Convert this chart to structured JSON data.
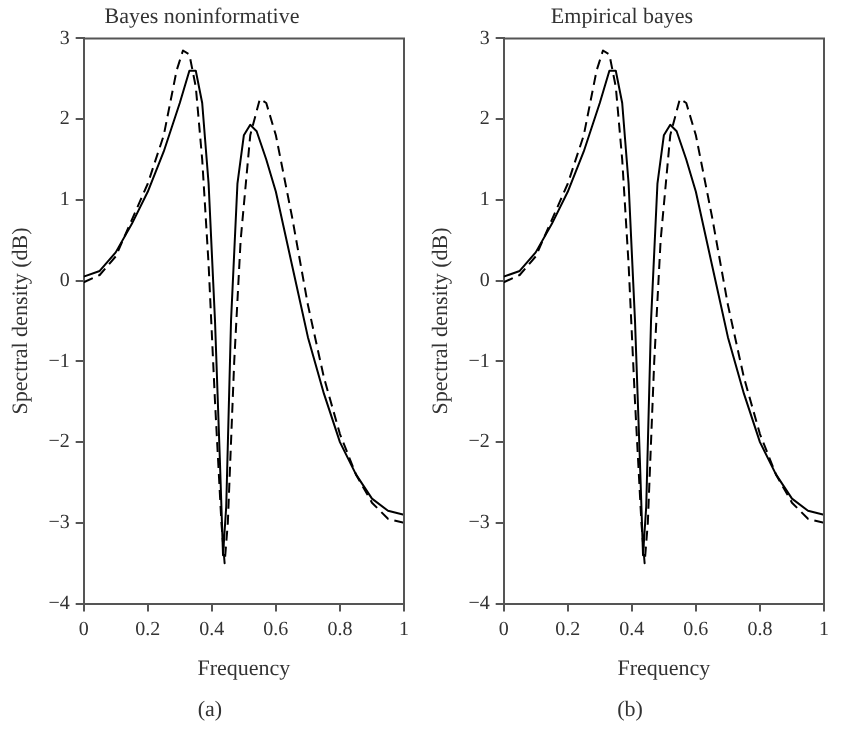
{
  "chart_data": [
    {
      "type": "line",
      "title": "Bayes noninformative",
      "xlabel": "Frequency",
      "ylabel": "Spectral density (dB)",
      "annotations": [
        "(a)"
      ],
      "xlim": [
        0,
        1
      ],
      "ylim": [
        -4,
        3
      ],
      "xticks": [
        0,
        0.2,
        0.4,
        0.6,
        0.8,
        1
      ],
      "yticks": [
        -4,
        -3,
        -2,
        -1,
        0,
        1,
        2,
        3
      ],
      "grid": false,
      "legend": false,
      "marker": "none",
      "series": [
        {
          "color": "#000000",
          "line_style": "solid",
          "x": [
            0,
            0.05,
            0.1,
            0.15,
            0.2,
            0.25,
            0.3,
            0.33,
            0.35,
            0.37,
            0.39,
            0.41,
            0.425,
            0.435,
            0.445,
            0.46,
            0.48,
            0.5,
            0.52,
            0.54,
            0.57,
            0.6,
            0.65,
            0.7,
            0.75,
            0.8,
            0.85,
            0.9,
            0.95,
            1
          ],
          "values": [
            0.05,
            0.12,
            0.35,
            0.7,
            1.1,
            1.6,
            2.2,
            2.6,
            2.6,
            2.2,
            1.2,
            -0.5,
            -2.2,
            -3.4,
            -2.8,
            -0.5,
            1.2,
            1.8,
            1.93,
            1.85,
            1.5,
            1.1,
            0.2,
            -0.7,
            -1.4,
            -2.0,
            -2.4,
            -2.7,
            -2.85,
            -2.9
          ]
        },
        {
          "color": "#000000",
          "line_style": "dashed",
          "x": [
            0,
            0.05,
            0.1,
            0.15,
            0.2,
            0.25,
            0.29,
            0.31,
            0.33,
            0.35,
            0.37,
            0.39,
            0.41,
            0.43,
            0.44,
            0.45,
            0.47,
            0.49,
            0.52,
            0.55,
            0.57,
            0.6,
            0.65,
            0.7,
            0.75,
            0.8,
            0.85,
            0.9,
            0.95,
            1
          ],
          "values": [
            -0.02,
            0.07,
            0.3,
            0.75,
            1.2,
            1.8,
            2.6,
            2.85,
            2.8,
            2.4,
            1.5,
            0.2,
            -1.5,
            -3.0,
            -3.5,
            -3.0,
            -1.0,
            0.5,
            1.8,
            2.25,
            2.2,
            1.8,
            0.8,
            -0.3,
            -1.2,
            -1.9,
            -2.4,
            -2.75,
            -2.95,
            -3.0
          ]
        }
      ]
    },
    {
      "type": "line",
      "title": "Empirical bayes",
      "xlabel": "Frequency",
      "ylabel": "Spectral density (dB)",
      "annotations": [
        "(b)"
      ],
      "xlim": [
        0,
        1
      ],
      "ylim": [
        -4,
        3
      ],
      "xticks": [
        0,
        0.2,
        0.4,
        0.6,
        0.8,
        1
      ],
      "yticks": [
        -4,
        -3,
        -2,
        -1,
        0,
        1,
        2,
        3
      ],
      "grid": false,
      "legend": false,
      "marker": "none",
      "series": [
        {
          "color": "#000000",
          "line_style": "solid",
          "x": [
            0,
            0.05,
            0.1,
            0.15,
            0.2,
            0.25,
            0.3,
            0.33,
            0.35,
            0.37,
            0.39,
            0.41,
            0.425,
            0.435,
            0.445,
            0.46,
            0.48,
            0.5,
            0.52,
            0.54,
            0.57,
            0.6,
            0.65,
            0.7,
            0.75,
            0.8,
            0.85,
            0.9,
            0.95,
            1
          ],
          "values": [
            0.05,
            0.12,
            0.35,
            0.7,
            1.1,
            1.6,
            2.2,
            2.6,
            2.6,
            2.2,
            1.2,
            -0.5,
            -2.2,
            -3.4,
            -2.8,
            -0.5,
            1.2,
            1.8,
            1.93,
            1.85,
            1.5,
            1.1,
            0.2,
            -0.7,
            -1.4,
            -2.0,
            -2.4,
            -2.7,
            -2.85,
            -2.9
          ]
        },
        {
          "color": "#000000",
          "line_style": "dashed",
          "x": [
            0,
            0.05,
            0.1,
            0.15,
            0.2,
            0.25,
            0.29,
            0.31,
            0.33,
            0.35,
            0.37,
            0.39,
            0.41,
            0.43,
            0.44,
            0.45,
            0.47,
            0.49,
            0.52,
            0.55,
            0.57,
            0.6,
            0.65,
            0.7,
            0.75,
            0.8,
            0.85,
            0.9,
            0.95,
            1
          ],
          "values": [
            -0.02,
            0.07,
            0.3,
            0.75,
            1.2,
            1.8,
            2.6,
            2.85,
            2.8,
            2.4,
            1.5,
            0.2,
            -1.5,
            -3.0,
            -3.5,
            -3.0,
            -1.0,
            0.5,
            1.8,
            2.25,
            2.2,
            1.8,
            0.8,
            -0.3,
            -1.2,
            -1.9,
            -2.4,
            -2.75,
            -2.95,
            -3.0
          ]
        }
      ]
    }
  ]
}
